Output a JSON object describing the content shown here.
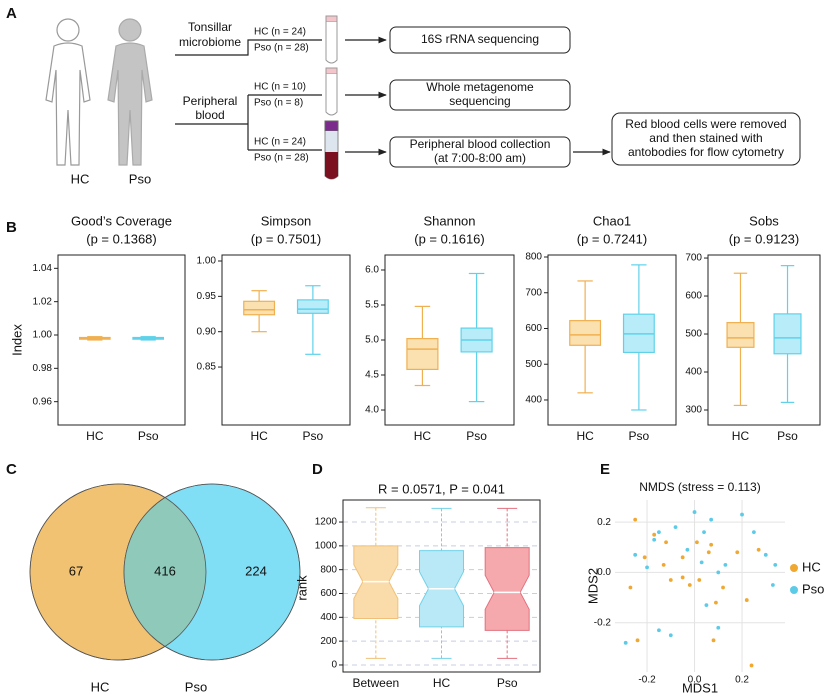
{
  "panel_labels": [
    "A",
    "B",
    "C",
    "D",
    "E"
  ],
  "diagram": {
    "people": [
      "HC",
      "Pso"
    ],
    "sources": [
      [
        "Tonsillar",
        "microbiome"
      ],
      [
        "Peripheral",
        "blood"
      ]
    ],
    "branches": [
      {
        "hc": "HC (n = 24)",
        "pso": "Pso (n = 28)",
        "step": [
          "16S rRNA sequencing"
        ]
      },
      {
        "hc": "HC (n = 10)",
        "pso": "Pso (n = 8)",
        "step": [
          "Whole metagenome",
          "sequencing"
        ]
      },
      {
        "hc": "HC (n = 24)",
        "pso": "Pso (n = 28)",
        "step": [
          "Peripheral blood collection",
          "(at 7:00-8:00 am)"
        ]
      }
    ],
    "final_step": [
      "Red blood cells were removed",
      "and then stained with",
      "antobodies for flow cytometry"
    ]
  },
  "chart_data": [
    {
      "type": "box",
      "title": "Good’s Coverage",
      "subtitle": "(p = 0.1368)",
      "ylabel": "Index",
      "categories": [
        "HC",
        "Pso"
      ],
      "fills": [
        "#fbe0b0",
        "#b8ecf8"
      ],
      "colors": [
        "#f0b050",
        "#5fd2ea"
      ],
      "boxes": [
        {
          "min": 0.997,
          "q1": 0.9975,
          "median": 0.998,
          "q3": 0.9985,
          "max": 0.999
        },
        {
          "min": 0.997,
          "q1": 0.9975,
          "median": 0.998,
          "q3": 0.9985,
          "max": 0.999
        }
      ],
      "ylim": [
        0.946,
        1.048
      ],
      "yticks": [
        0.96,
        0.98,
        {
          "value": 1,
          "label": "1.00"
        },
        1.02,
        1.04
      ]
    },
    {
      "type": "box",
      "title": "Simpson",
      "subtitle": "(p = 0.7501)",
      "categories": [
        "HC",
        "Pso"
      ],
      "fills": [
        "#fbe0b0",
        "#b8ecf8"
      ],
      "colors": [
        "#f0b050",
        "#5fd2ea"
      ],
      "boxes": [
        {
          "min": 0.9,
          "q1": 0.924,
          "median": 0.931,
          "q3": 0.943,
          "max": 0.958
        },
        {
          "min": 0.868,
          "q1": 0.926,
          "median": 0.932,
          "q3": 0.945,
          "max": 0.965
        }
      ],
      "ylim": [
        0.768,
        1.0085
      ],
      "yticks": [
        0.85,
        {
          "value": 0.9,
          "label": "0.90"
        },
        0.95,
        {
          "value": 1,
          "label": "1.00"
        }
      ]
    },
    {
      "type": "box",
      "title": "Shannon",
      "subtitle": "(p = 0.1616)",
      "categories": [
        "HC",
        "Pso"
      ],
      "fills": [
        "#fbe0b0",
        "#b8ecf8"
      ],
      "colors": [
        "#f0b050",
        "#5fd2ea"
      ],
      "boxes": [
        {
          "min": 4.35,
          "q1": 4.58,
          "median": 4.87,
          "q3": 5.02,
          "max": 5.48
        },
        {
          "min": 4.12,
          "q1": 4.83,
          "median": 5.0,
          "q3": 5.17,
          "max": 5.95
        }
      ],
      "ylim": [
        3.786,
        6.214
      ],
      "yticks": [
        {
          "value": 4,
          "label": "4.0"
        },
        4.5,
        {
          "value": 5,
          "label": "5.0"
        },
        5.5,
        {
          "value": 6,
          "label": "6.0"
        }
      ]
    },
    {
      "type": "box",
      "title": "Chao1",
      "subtitle": "(p = 0.7241)",
      "categories": [
        "HC",
        "Pso"
      ],
      "fills": [
        "#fbe0b0",
        "#b8ecf8"
      ],
      "colors": [
        "#f0b050",
        "#5fd2ea"
      ],
      "boxes": [
        {
          "min": 420,
          "q1": 553,
          "median": 582,
          "q3": 622,
          "max": 733
        },
        {
          "min": 372,
          "q1": 533,
          "median": 585,
          "q3": 640,
          "max": 778
        }
      ],
      "ylim": [
        330,
        805.6
      ],
      "yticks": [
        400,
        500,
        600,
        700,
        800
      ]
    },
    {
      "type": "box",
      "title": "Sobs",
      "subtitle": "(p = 0.9123)",
      "categories": [
        "HC",
        "Pso"
      ],
      "fills": [
        "#fbe0b0",
        "#b8ecf8"
      ],
      "colors": [
        "#f0b050",
        "#5fd2ea"
      ],
      "boxes": [
        {
          "min": 312,
          "q1": 465,
          "median": 490,
          "q3": 530,
          "max": 660
        },
        {
          "min": 320,
          "q1": 448,
          "median": 490,
          "q3": 553,
          "max": 680
        }
      ],
      "ylim": [
        260.5,
        708
      ],
      "yticks": [
        300,
        400,
        500,
        600,
        700
      ]
    },
    {
      "type": "venn",
      "sets": [
        {
          "name": "HC",
          "color": "#f2c273"
        },
        {
          "name": "Pso",
          "color": "#80def5"
        }
      ],
      "overlap_color": "#8ec9b9",
      "values": [
        67,
        416,
        224
      ]
    },
    {
      "type": "notchbox",
      "title": "R = 0.0571, P = 0.041",
      "ylabel": "rank",
      "categories": [
        "Between",
        "HC",
        "Pso"
      ],
      "fills": [
        "#f9dcaa",
        "#b9e9f6",
        "#f6a9ad"
      ],
      "colors": [
        "#f0c078",
        "#72d2ea",
        "#e2707e"
      ],
      "boxes": [
        {
          "min": 55,
          "q1": 390,
          "median": 700,
          "q3": 1000,
          "max": 1320
        },
        {
          "min": 55,
          "q1": 320,
          "median": 640,
          "q3": 960,
          "max": 1315
        },
        {
          "min": 55,
          "q1": 290,
          "median": 610,
          "q3": 985,
          "max": 1315
        }
      ],
      "ylim": [
        -59,
        1385
      ],
      "yticks": [
        0,
        200,
        400,
        600,
        800,
        1000,
        1200
      ],
      "grid": true
    },
    {
      "type": "scatter",
      "title": "NMDS (stress = 0.113)",
      "xlabel": "MDS1",
      "ylabel": "MDS2",
      "xlim": [
        -0.335,
        0.381
      ],
      "ylim": [
        -0.396,
        0.288
      ],
      "xticks": [
        -0.2,
        {
          "value": 0,
          "label": "0.0"
        },
        0.2
      ],
      "yticks": [
        -0.2,
        {
          "value": 0,
          "label": "0.0"
        },
        0.2
      ],
      "grid": true,
      "series": [
        {
          "name": "HC",
          "color": "#f0a830",
          "x": [
            -0.25,
            -0.17,
            -0.13,
            -0.21,
            -0.27,
            -0.1,
            -0.05,
            -0.02,
            0.02,
            0.06,
            0.07,
            0.09,
            0.08,
            0.12,
            0.18,
            0.22,
            0.27,
            0.24,
            -0.24,
            -0.05,
            0.01,
            -0.12
          ],
          "values": [
            0.21,
            0.15,
            0.03,
            0.06,
            -0.06,
            -0.03,
            -0.02,
            -0.05,
            -0.03,
            0.08,
            0.11,
            -0.12,
            -0.27,
            -0.06,
            0.08,
            -0.11,
            0.09,
            -0.37,
            -0.27,
            0.06,
            0.12,
            0.12
          ]
        },
        {
          "name": "Pso",
          "color": "#5ccbe8",
          "x": [
            -0.29,
            -0.15,
            -0.1,
            -0.25,
            -0.17,
            -0.08,
            -0.15,
            0,
            0.04,
            0.07,
            0.03,
            0.1,
            0.2,
            0.25,
            0.3,
            0.34,
            0.33,
            0.1,
            0.13,
            -0.03,
            -0.2,
            0.05
          ],
          "values": [
            -0.28,
            -0.23,
            -0.25,
            0.07,
            0.13,
            0.18,
            0.16,
            0.24,
            0.16,
            0.21,
            0.04,
            0,
            0.23,
            0.16,
            0.07,
            0.03,
            -0.05,
            -0.22,
            0.03,
            0.09,
            0.02,
            -0.13
          ]
        }
      ]
    }
  ]
}
